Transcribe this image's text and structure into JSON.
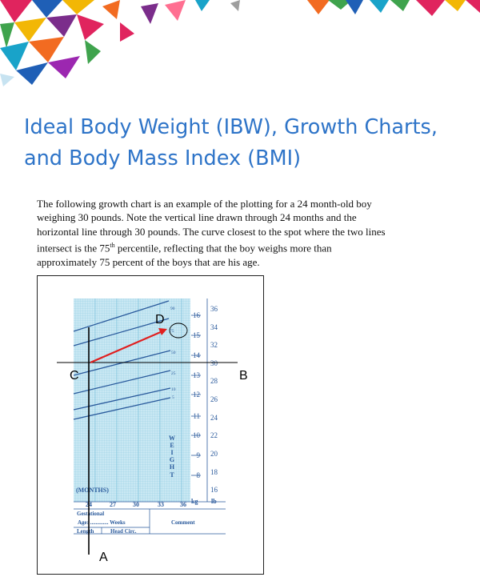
{
  "title": {
    "line1": "Ideal Body Weight (IBW), Growth Charts,",
    "line2": "and Body Mass Index (BMI)"
  },
  "paragraph": {
    "line1": "The following growth chart is an example of the plotting for a 24 month-old boy",
    "line2": "weighing 30 pounds. Note the vertical line drawn through 24 months and the",
    "line3": "horizontal line through 30 pounds. The curve closest to the spot where the two lines",
    "line4_pre": "intersect is the 75",
    "line4_sup": "th",
    "line4_post": " percentile, reflecting that the boy weighs more than",
    "line5": "approximately 75 percent of the boys that are his age."
  },
  "chart": {
    "point_labels": {
      "a": "A",
      "b": "B",
      "c": "C",
      "d": "D"
    },
    "months_label": "(MONTHS)",
    "age_ticks": [
      "24",
      "27",
      "30",
      "33",
      "36"
    ],
    "kg_unit": "kg",
    "lb_unit": "lb",
    "kg_ticks": [
      "16",
      "15",
      "14",
      "13",
      "12",
      "11",
      "10",
      "9",
      "8"
    ],
    "lb_ticks": [
      "36",
      "34",
      "32",
      "30",
      "28",
      "26",
      "24",
      "22",
      "20",
      "18",
      "16"
    ],
    "percentiles": [
      "90",
      "75",
      "50",
      "25",
      "10",
      "5"
    ],
    "weight_letters": [
      "W",
      "E",
      "I",
      "G",
      "H",
      "T"
    ],
    "table": {
      "gestational": "Gestational",
      "age": "Age: ............. Weeks",
      "comment": "Comment",
      "length": "Length",
      "head_circ": "Head Circ."
    }
  },
  "colors": {
    "title": "#2e74c8",
    "grid_fill": "#c9e8f3",
    "grid_line": "#7ec1dc",
    "curve": "#2a5a9c",
    "arrow": "#e02020"
  }
}
